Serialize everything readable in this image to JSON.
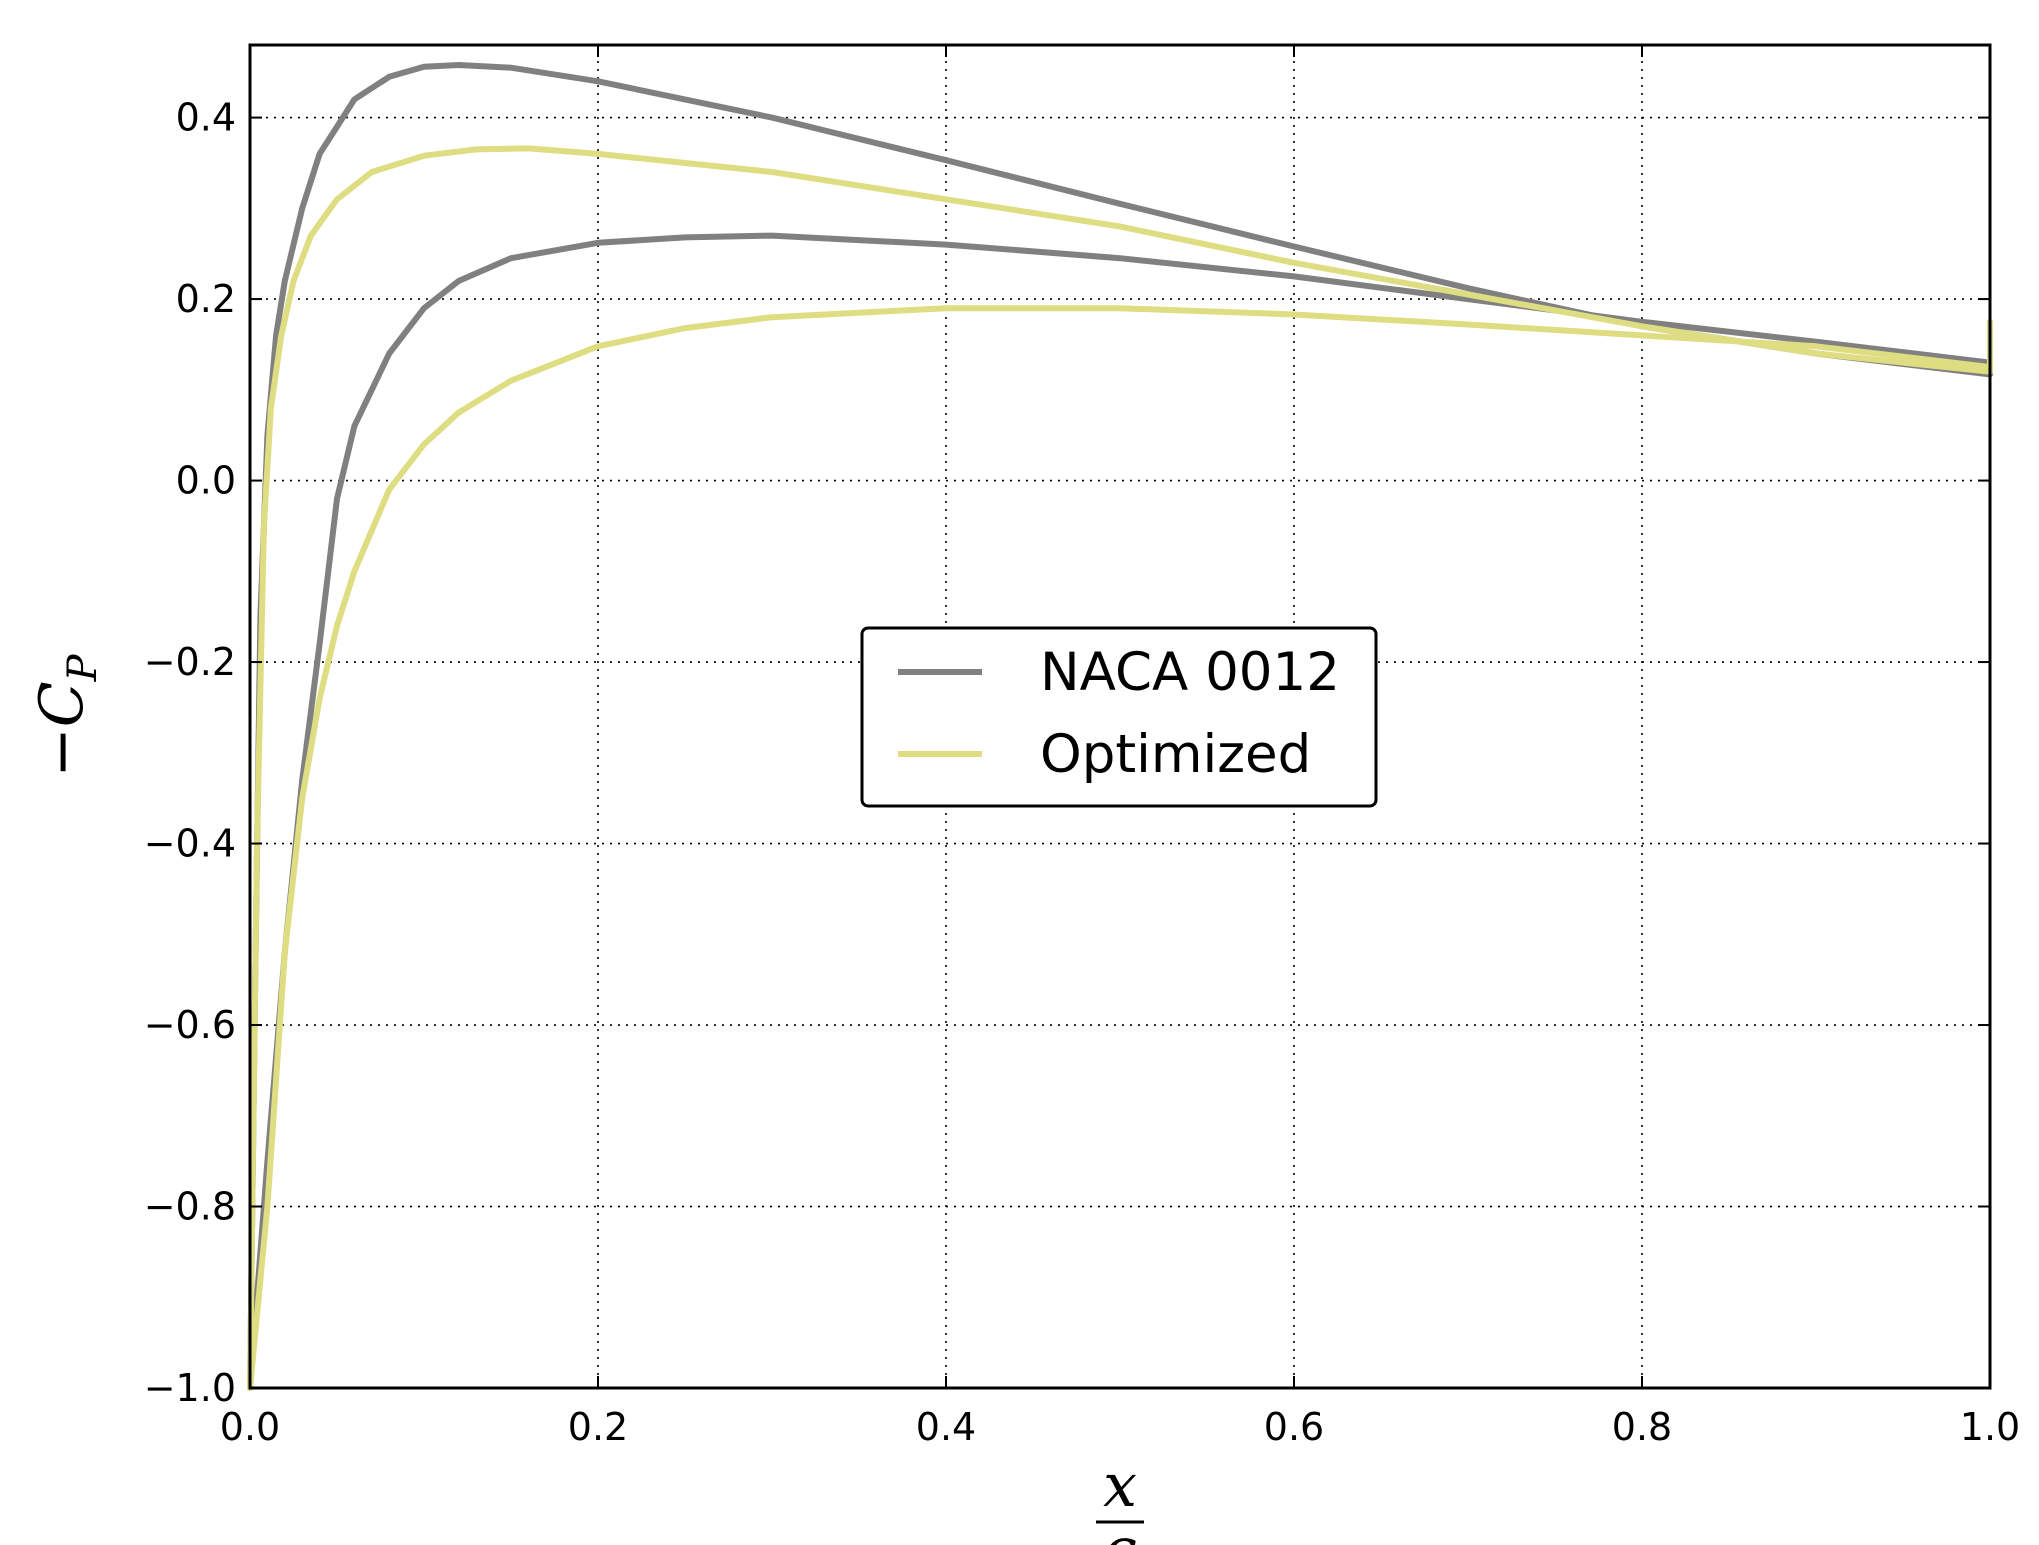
{
  "chart_data": {
    "type": "line",
    "xlabel": {
      "numerator": "x",
      "denominator": "c"
    },
    "ylabel": {
      "sign": "−",
      "symbol": "C",
      "subscript": "P"
    },
    "xlim": [
      0.0,
      1.0
    ],
    "ylim": [
      -1.0,
      0.48
    ],
    "xticks": [
      0.0,
      0.2,
      0.4,
      0.6,
      0.8,
      1.0
    ],
    "xtick_labels": [
      "0.0",
      "0.2",
      "0.4",
      "0.6",
      "0.8",
      "1.0"
    ],
    "yticks": [
      -1.0,
      -0.8,
      -0.6,
      -0.4,
      -0.2,
      0.0,
      0.2,
      0.4
    ],
    "ytick_labels": [
      "−1.0",
      "−0.8",
      "−0.6",
      "−0.4",
      "−0.2",
      "0.0",
      "0.2",
      "0.4"
    ],
    "grid": true,
    "legend_position": "center",
    "series": [
      {
        "name": "NACA 0012",
        "color": "#808080",
        "segments": [
          [
            [
              0.0,
              -1.0
            ],
            [
              0.003,
              -0.55
            ],
            [
              0.006,
              -0.15
            ],
            [
              0.01,
              0.05
            ],
            [
              0.015,
              0.16
            ],
            [
              0.02,
              0.22
            ],
            [
              0.03,
              0.3
            ],
            [
              0.04,
              0.36
            ],
            [
              0.05,
              0.39
            ],
            [
              0.06,
              0.42
            ],
            [
              0.08,
              0.445
            ],
            [
              0.1,
              0.456
            ],
            [
              0.12,
              0.458
            ],
            [
              0.15,
              0.455
            ],
            [
              0.2,
              0.44
            ],
            [
              0.3,
              0.4
            ],
            [
              0.4,
              0.353
            ],
            [
              0.5,
              0.305
            ],
            [
              0.6,
              0.258
            ],
            [
              0.7,
              0.212
            ],
            [
              0.8,
              0.17
            ],
            [
              0.9,
              0.14
            ],
            [
              1.0,
              0.117
            ]
          ],
          [
            [
              0.0,
              -1.0
            ],
            [
              0.01,
              -0.75
            ],
            [
              0.02,
              -0.52
            ],
            [
              0.03,
              -0.33
            ],
            [
              0.04,
              -0.18
            ],
            [
              0.05,
              -0.02
            ],
            [
              0.06,
              0.06
            ],
            [
              0.08,
              0.14
            ],
            [
              0.1,
              0.19
            ],
            [
              0.12,
              0.22
            ],
            [
              0.15,
              0.245
            ],
            [
              0.2,
              0.262
            ],
            [
              0.25,
              0.268
            ],
            [
              0.3,
              0.27
            ],
            [
              0.4,
              0.26
            ],
            [
              0.5,
              0.245
            ],
            [
              0.6,
              0.225
            ],
            [
              0.7,
              0.2
            ],
            [
              0.8,
              0.175
            ],
            [
              0.9,
              0.153
            ],
            [
              1.0,
              0.13
            ]
          ]
        ]
      },
      {
        "name": "Optimized",
        "color": "#dedd82",
        "segments": [
          [
            [
              0.0,
              -1.0
            ],
            [
              0.004,
              -0.4
            ],
            [
              0.008,
              -0.05
            ],
            [
              0.012,
              0.08
            ],
            [
              0.018,
              0.16
            ],
            [
              0.025,
              0.22
            ],
            [
              0.035,
              0.27
            ],
            [
              0.05,
              0.31
            ],
            [
              0.07,
              0.34
            ],
            [
              0.1,
              0.358
            ],
            [
              0.13,
              0.365
            ],
            [
              0.16,
              0.366
            ],
            [
              0.2,
              0.36
            ],
            [
              0.3,
              0.34
            ],
            [
              0.4,
              0.31
            ],
            [
              0.5,
              0.28
            ],
            [
              0.6,
              0.24
            ],
            [
              0.7,
              0.205
            ],
            [
              0.8,
              0.17
            ],
            [
              0.9,
              0.14
            ],
            [
              1.0,
              0.12
            ],
            [
              1.0,
              0.175
            ]
          ],
          [
            [
              0.0,
              -1.0
            ],
            [
              0.01,
              -0.8
            ],
            [
              0.02,
              -0.52
            ],
            [
              0.03,
              -0.35
            ],
            [
              0.04,
              -0.24
            ],
            [
              0.05,
              -0.16
            ],
            [
              0.06,
              -0.1
            ],
            [
              0.08,
              -0.01
            ],
            [
              0.1,
              0.04
            ],
            [
              0.12,
              0.075
            ],
            [
              0.15,
              0.11
            ],
            [
              0.2,
              0.148
            ],
            [
              0.25,
              0.168
            ],
            [
              0.3,
              0.18
            ],
            [
              0.4,
              0.19
            ],
            [
              0.5,
              0.19
            ],
            [
              0.6,
              0.183
            ],
            [
              0.7,
              0.172
            ],
            [
              0.8,
              0.16
            ],
            [
              0.9,
              0.148
            ],
            [
              1.0,
              0.125
            ]
          ]
        ]
      }
    ]
  }
}
